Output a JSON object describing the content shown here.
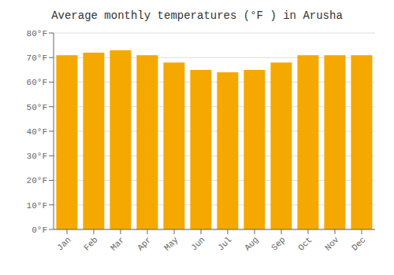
{
  "chart_data": {
    "type": "bar",
    "title": "Average monthly temperatures (°F ) in Arusha",
    "categories": [
      "Jan",
      "Feb",
      "Mar",
      "Apr",
      "May",
      "Jun",
      "Jul",
      "Aug",
      "Sep",
      "Oct",
      "Nov",
      "Dec"
    ],
    "values": [
      71,
      72,
      73,
      71,
      68,
      65,
      64,
      65,
      68,
      71,
      71,
      71
    ],
    "color": "#F5A800",
    "ylim": [
      0,
      80
    ],
    "yticks": [
      {
        "value": 0,
        "label": "0°F"
      },
      {
        "value": 10,
        "label": "10°F"
      },
      {
        "value": 20,
        "label": "20°F"
      },
      {
        "value": 30,
        "label": "30°F"
      },
      {
        "value": 40,
        "label": "40°F"
      },
      {
        "value": 50,
        "label": "50°F"
      },
      {
        "value": 60,
        "label": "60°F"
      },
      {
        "value": 70,
        "label": "70°F"
      },
      {
        "value": 80,
        "label": "80°F"
      }
    ],
    "grid": true
  }
}
